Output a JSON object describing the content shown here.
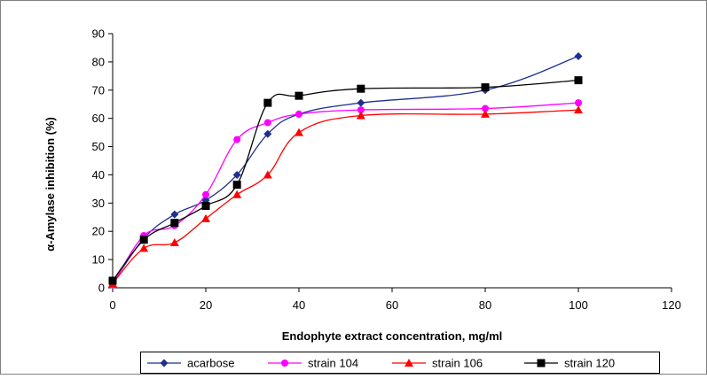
{
  "chart_data": {
    "type": "line",
    "title": "",
    "xlabel": "Endophyte extract concentration, mg/ml",
    "ylabel": "α-Amylase inhibition (%)",
    "xlim": [
      0,
      120
    ],
    "ylim": [
      0,
      90
    ],
    "xticks": [
      "0",
      "20",
      "40",
      "60",
      "80",
      "100",
      "120"
    ],
    "yticks": [
      "0",
      "10",
      "20",
      "30",
      "40",
      "50",
      "60",
      "70",
      "80",
      "90"
    ],
    "grid": false,
    "legend_position": "bottom",
    "series": [
      {
        "name": "acarbose",
        "color": "#1f2f8f",
        "marker": "diamond",
        "x": [
          0,
          6.7,
          13.3,
          20,
          26.7,
          33.3,
          40,
          53.3,
          80,
          100
        ],
        "y": [
          1.5,
          17.5,
          26,
          31,
          40,
          54.5,
          61.5,
          65.5,
          70,
          82
        ]
      },
      {
        "name": "strain 104",
        "color": "#ff00ff",
        "marker": "circle",
        "x": [
          0,
          6.7,
          13.3,
          20,
          26.7,
          33.3,
          40,
          53.3,
          80,
          100
        ],
        "y": [
          1,
          18.5,
          22,
          33,
          52.5,
          58.5,
          61.5,
          63,
          63.5,
          65.5
        ]
      },
      {
        "name": "strain 106",
        "color": "#ff0000",
        "marker": "triangle",
        "x": [
          0,
          6.7,
          13.3,
          20,
          26.7,
          33.3,
          40,
          53.3,
          80,
          100
        ],
        "y": [
          1.5,
          14,
          16,
          24.5,
          33,
          40,
          55,
          61,
          61.5,
          63
        ]
      },
      {
        "name": "strain 120",
        "color": "#000000",
        "marker": "square",
        "x": [
          0,
          6.7,
          13.3,
          20,
          26.7,
          33.3,
          40,
          53.3,
          80,
          100
        ],
        "y": [
          2.5,
          17,
          23,
          29,
          36.5,
          65.5,
          68,
          70.5,
          71,
          73.5
        ]
      }
    ]
  }
}
